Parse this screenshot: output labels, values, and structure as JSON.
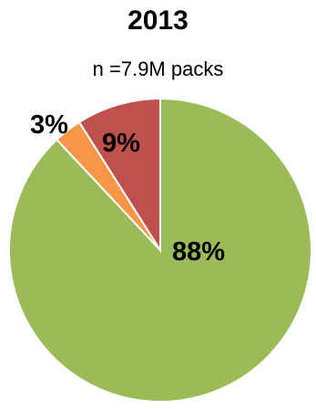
{
  "chart_data": {
    "type": "pie",
    "title": "2013",
    "subtitle": "n =7.9M packs",
    "slices": [
      {
        "label": "88%",
        "value": 88,
        "color": "#9bbb59"
      },
      {
        "label": "3%",
        "value": 3,
        "color": "#f79646"
      },
      {
        "label": "9%",
        "value": 9,
        "color": "#c0504d"
      }
    ],
    "legend": "none"
  }
}
